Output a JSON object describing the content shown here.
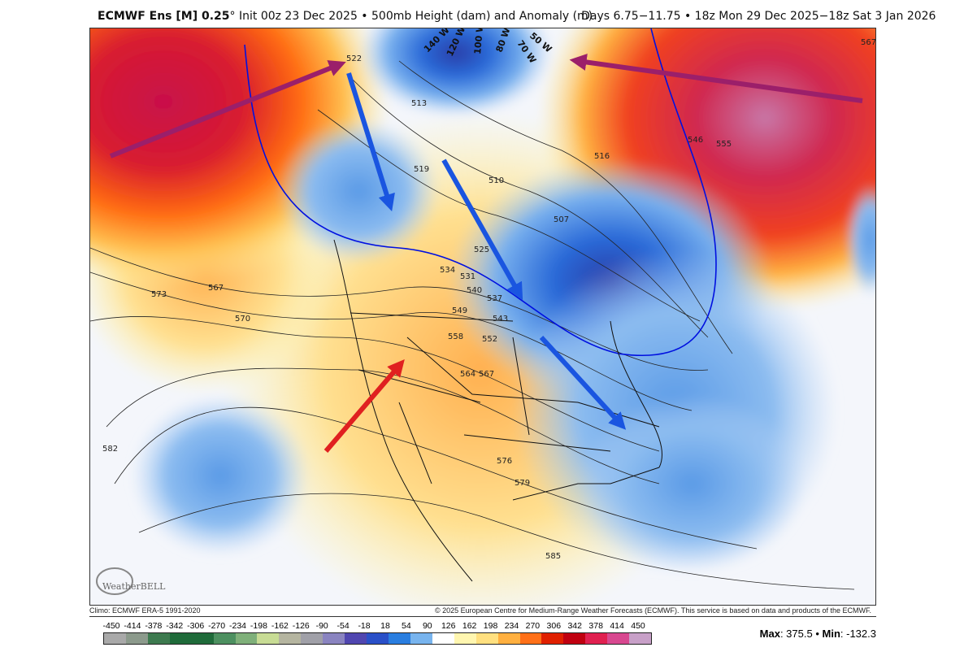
{
  "title": {
    "model": "ECMWF Ens [M] 0.25",
    "degree": "°",
    "rest": " Init 00z 23 Dec 2025 • 500mb Height (dam) and Anomaly (m)",
    "valid": "Days 6.75−11.75 • 18z Mon 29 Dec 2025−18z Sat 3 Jan 2026"
  },
  "footer": {
    "climo": "Climo: ECMWF ERA-5 1991-2020",
    "copyright": "© 2025 European Centre for Medium-Range Weather Forecasts (ECMWF). This service is based on data and products of the ECMWF."
  },
  "logo_text": "WeatherBELL",
  "longitude_labels": [
    "140 W",
    "120 W",
    "100 W",
    "80 W",
    "70 W",
    "50 W"
  ],
  "contour_labels": [
    "573",
    "567",
    "570",
    "582",
    "585",
    "579",
    "576",
    "564",
    "567",
    "558",
    "552",
    "549",
    "543",
    "540",
    "537",
    "534",
    "531",
    "525",
    "519",
    "513",
    "510",
    "507",
    "516",
    "546",
    "555",
    "567",
    "522"
  ],
  "colorbar": {
    "labels": [
      "-450",
      "-414",
      "-378",
      "-342",
      "-306",
      "-270",
      "-234",
      "-198",
      "-162",
      "-126",
      "-90",
      "-54",
      "-18",
      "18",
      "54",
      "90",
      "126",
      "162",
      "198",
      "234",
      "270",
      "306",
      "342",
      "378",
      "414",
      "450"
    ],
    "colors": [
      "#a9a9a9",
      "#8c9a8c",
      "#3d7a4f",
      "#1f6b3a",
      "#1f6b3a",
      "#4d9060",
      "#7fb07a",
      "#c8dc95",
      "#b5b5a0",
      "#a0a0a8",
      "#8a84c0",
      "#5046b0",
      "#2a50c8",
      "#2a7ee0",
      "#78b4ee",
      "#ffffff",
      "#fff6b0",
      "#ffe080",
      "#ffb040",
      "#ff7018",
      "#e02000",
      "#c00010",
      "#e02050",
      "#d84890",
      "#c8a0c8"
    ]
  },
  "stats": {
    "max_label": "Max",
    "max": "375.5",
    "min_label": "Min",
    "min": "-132.3",
    "sep": " • "
  },
  "annotations": {
    "arrow_colors": {
      "ridge": "#9b1f6a",
      "trough": "#1a55e0",
      "west": "#e02020"
    }
  }
}
